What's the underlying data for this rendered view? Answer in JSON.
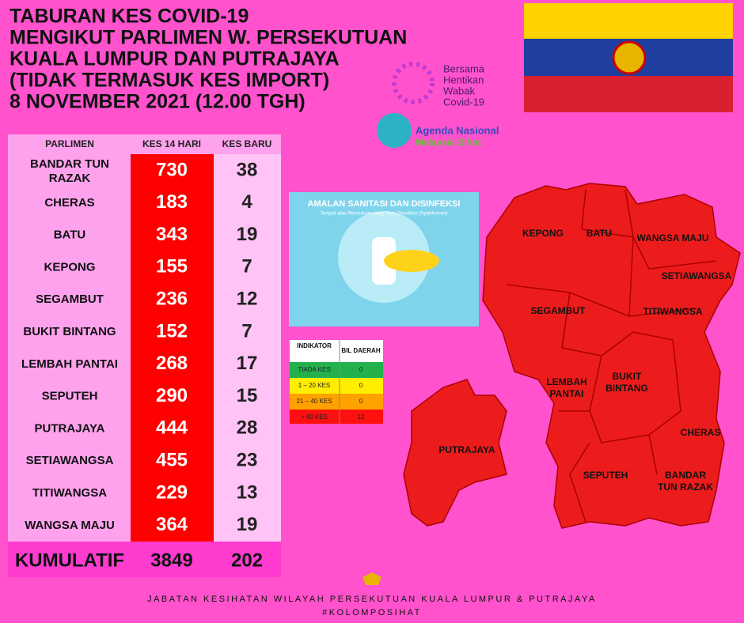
{
  "header": {
    "title_lines": [
      "TABURAN KES COVID-19",
      "MENGIKUT PARLIMEN W. PERSEKUTUAN",
      "KUALA LUMPUR DAN PUTRAJAYA",
      "(TIDAK TERMASUK KES IMPORT)",
      "8 NOVEMBER 2021 (12.00 TGH)"
    ]
  },
  "logos": {
    "campaign": [
      "Bersama",
      "Hentikan",
      "Wabak",
      "Covid-19"
    ],
    "agenda": [
      "Agenda Nasional",
      "Malaysia Sihat"
    ]
  },
  "table": {
    "headers": [
      "PARLIMEN",
      "KES 14 HARI",
      "KES BARU"
    ],
    "rows": [
      [
        "BANDAR TUN RAZAK",
        730,
        38
      ],
      [
        "CHERAS",
        183,
        4
      ],
      [
        "BATU",
        343,
        19
      ],
      [
        "KEPONG",
        155,
        7
      ],
      [
        "SEGAMBUT",
        236,
        12
      ],
      [
        "BUKIT BINTANG",
        152,
        7
      ],
      [
        "LEMBAH PANTAI",
        268,
        17
      ],
      [
        "SEPUTEH",
        290,
        15
      ],
      [
        "PUTRAJAYA",
        444,
        28
      ],
      [
        "SETIAWANGSA",
        455,
        23
      ],
      [
        "TITIWANGSA",
        229,
        13
      ],
      [
        "WANGSA MAJU",
        364,
        19
      ]
    ],
    "total": [
      "KUMULATIF",
      3849,
      202
    ]
  },
  "poster": {
    "title": "AMALAN SANITASI DAN DISINFEKSI",
    "subtitle": "Tempat atau Permukaan yang Perlu Disinfeksi (Nyahkuman)"
  },
  "indicator": {
    "headers": [
      "INDIKATOR",
      "BIL DAERAH"
    ],
    "rows": [
      [
        "TIADA KES",
        0
      ],
      [
        "1 – 20 KES",
        0
      ],
      [
        "21 – 40 KES",
        0
      ],
      [
        "> 40 KES",
        12
      ]
    ]
  },
  "map": {
    "labels": [
      "KEPONG",
      "BATU",
      "WANGSA MAJU",
      "SETIAWANGSA",
      "SEGAMBUT",
      "TITIWANGSA",
      "LEMBAH PANTAI",
      "BUKIT BINTANG",
      "CHERAS",
      "PUTRAJAYA",
      "SEPUTEH",
      "BANDAR TUN RAZAK"
    ]
  },
  "footer": [
    "JABATAN KESIHATAN WILAYAH PERSEKUTUAN KUALA LUMPUR & PUTRAJAYA",
    "#KOLOMPOSIHAT"
  ]
}
